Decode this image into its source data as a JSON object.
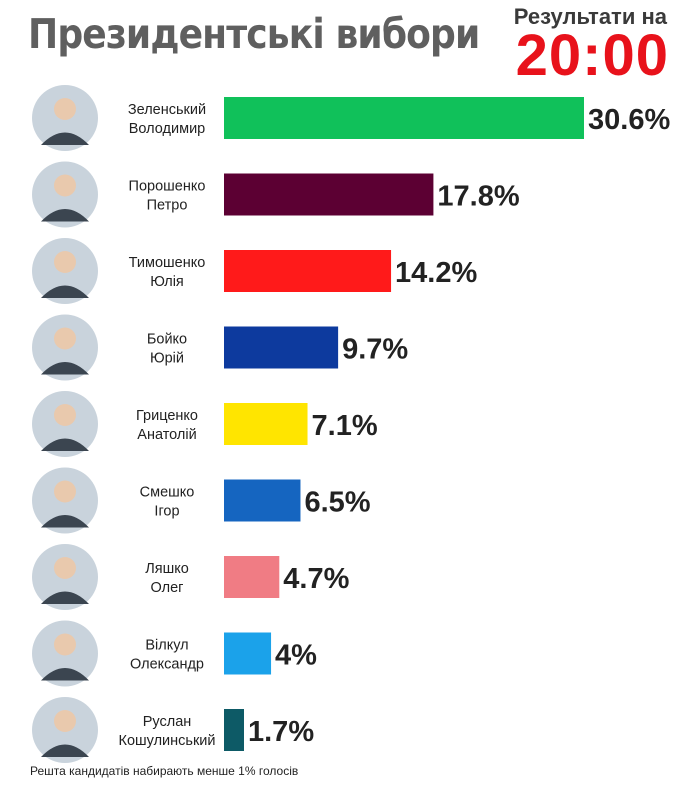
{
  "header": {
    "title": "Президентські вибори",
    "results_label": "Результати на",
    "results_time": "20:00"
  },
  "footnote": "Решта кандидатів набирають менше 1% голосів",
  "chart_data": {
    "type": "bar",
    "orientation": "horizontal",
    "categories": [
      [
        "Зеленський",
        "Володимир"
      ],
      [
        "Порошенко",
        "Петро"
      ],
      [
        "Тимошенко",
        "Юлія"
      ],
      [
        "Бойко",
        "Юрій"
      ],
      [
        "Гриценко",
        "Анатолій"
      ],
      [
        "Смешко",
        "Ігор"
      ],
      [
        "Ляшко",
        "Олег"
      ],
      [
        "Вілкул",
        "Олександр"
      ],
      [
        "Руслан",
        "Кошулинський"
      ]
    ],
    "values": [
      30.6,
      17.8,
      14.2,
      9.7,
      7.1,
      6.5,
      4.7,
      4,
      1.7
    ],
    "value_labels": [
      "30.6%",
      "17.8%",
      "14.2%",
      "9.7%",
      "7.1%",
      "6.5%",
      "4.7%",
      "4%",
      "1.7%"
    ],
    "colors": [
      "#10c15a",
      "#5c0033",
      "#ff1a1a",
      "#0d3a9e",
      "#ffe500",
      "#1565c0",
      "#f07c84",
      "#1ba2ea",
      "#0d5a66"
    ]
  }
}
